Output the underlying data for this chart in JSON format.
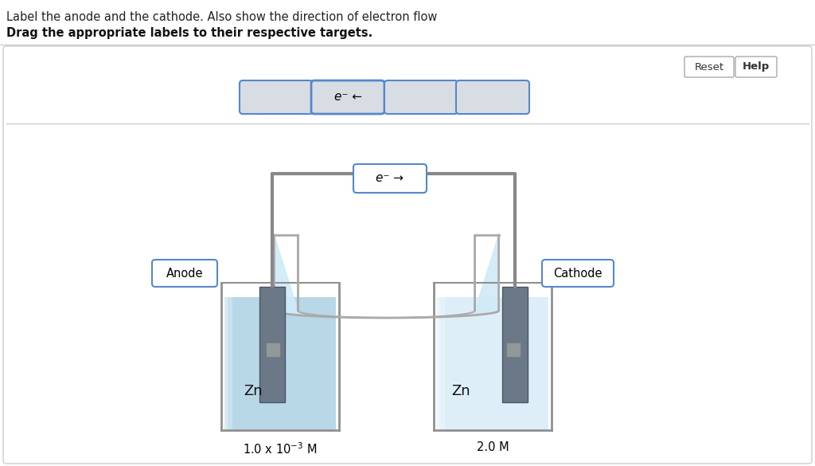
{
  "title_line1": "Label the anode and the cathode. Also show the direction of electron flow",
  "title_line2": "Drag the appropriate labels to their respective targets.",
  "bg_color": "#ffffff",
  "reset_text": "Reset",
  "help_text": "Help",
  "electron_flow_arrow": "e⁻ →",
  "electron_flow_top": "e⁻ ←",
  "anode_label": "Anode",
  "cathode_label": "Cathode",
  "zn_left": "Zn",
  "zn_right": "Zn",
  "conc_left_main": "1.0 x 10",
  "conc_left_exp": "-3",
  "conc_left_unit": "M",
  "conc_right": "2.0 M",
  "beaker_left_color": "#b8d8e8",
  "beaker_right_color": "#ddeef8",
  "beaker_glass_color": "#d8eaf2",
  "beaker_border_color": "#909090",
  "electrode_left_color": "#6a7f8a",
  "electrode_right_color": "#7a8f9a",
  "wire_color": "#888888",
  "salt_bridge_fill": "#d0eaf8",
  "salt_bridge_border": "#aaaaaa",
  "label_box_border_blue": "#5588cc",
  "label_box_bg_gray": "#d8dde4",
  "label_box_bg_white": "#ffffff",
  "panel_border": "#cccccc"
}
